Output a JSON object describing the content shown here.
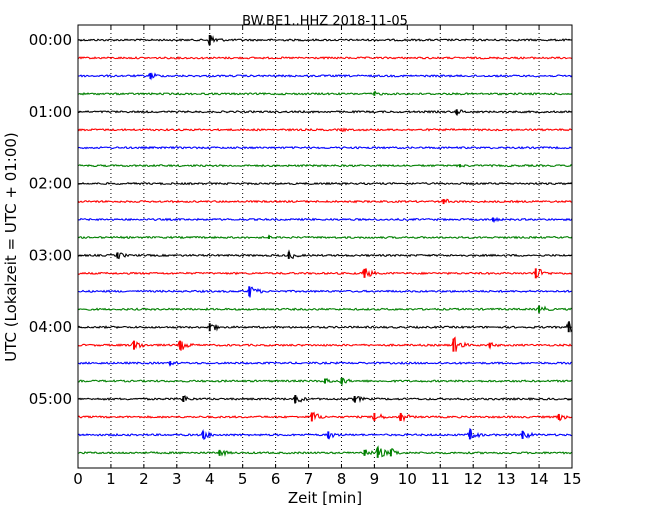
{
  "chart_data": {
    "type": "line",
    "title": "BW.BE1..HHZ 2018-11-05",
    "xlabel": "Zeit  [min]",
    "ylabel": "UTC (Lokalzeit = UTC + 01:00)",
    "xlim": [
      0,
      15
    ],
    "x_ticks": [
      "0",
      "1",
      "2",
      "3",
      "4",
      "5",
      "6",
      "7",
      "8",
      "9",
      "10",
      "11",
      "12",
      "13",
      "14",
      "15"
    ],
    "y_tick_labels": [
      "00:00",
      "01:00",
      "02:00",
      "03:00",
      "04:00",
      "05:00"
    ],
    "trace_interval_minutes": 15,
    "grid": "vertical dotted at each minute",
    "trace_colors": [
      "#000000",
      "#ff0000",
      "#0000ff",
      "#008000"
    ],
    "traces": [
      {
        "start": "00:00",
        "events": [
          {
            "t": 4.0,
            "amp": 1.0
          }
        ]
      },
      {
        "start": "00:15",
        "events": []
      },
      {
        "start": "00:30",
        "events": [
          {
            "t": 2.2,
            "amp": 0.6
          }
        ]
      },
      {
        "start": "00:45",
        "events": [
          {
            "t": 9.0,
            "amp": 0.4
          }
        ]
      },
      {
        "start": "01:00",
        "events": [
          {
            "t": 11.5,
            "amp": 0.5
          }
        ]
      },
      {
        "start": "01:15",
        "events": [
          {
            "t": 8.0,
            "amp": 0.3
          }
        ]
      },
      {
        "start": "01:30",
        "events": []
      },
      {
        "start": "01:45",
        "events": [
          {
            "t": 11.6,
            "amp": 0.3
          }
        ]
      },
      {
        "start": "02:00",
        "events": []
      },
      {
        "start": "02:15",
        "events": [
          {
            "t": 11.1,
            "amp": 0.5
          }
        ]
      },
      {
        "start": "02:30",
        "events": [
          {
            "t": 12.6,
            "amp": 0.4
          }
        ]
      },
      {
        "start": "02:45",
        "events": [
          {
            "t": 5.8,
            "amp": 0.3
          }
        ]
      },
      {
        "start": "03:00",
        "events": [
          {
            "t": 1.2,
            "amp": 0.6
          },
          {
            "t": 6.4,
            "amp": 0.7
          }
        ]
      },
      {
        "start": "03:15",
        "events": [
          {
            "t": 8.7,
            "amp": 0.9
          },
          {
            "t": 13.9,
            "amp": 1.0
          }
        ]
      },
      {
        "start": "03:30",
        "events": [
          {
            "t": 5.2,
            "amp": 1.0
          }
        ]
      },
      {
        "start": "03:45",
        "events": [
          {
            "t": 14.0,
            "amp": 0.7
          }
        ]
      },
      {
        "start": "04:00",
        "events": [
          {
            "t": 4.0,
            "amp": 0.8
          },
          {
            "t": 14.9,
            "amp": 1.0
          }
        ]
      },
      {
        "start": "04:15",
        "events": [
          {
            "t": 1.7,
            "amp": 0.9
          },
          {
            "t": 3.1,
            "amp": 0.9
          },
          {
            "t": 11.4,
            "amp": 1.3
          },
          {
            "t": 12.5,
            "amp": 0.5
          }
        ]
      },
      {
        "start": "04:30",
        "events": [
          {
            "t": 2.8,
            "amp": 0.4
          }
        ]
      },
      {
        "start": "04:45",
        "events": [
          {
            "t": 7.5,
            "amp": 0.5
          },
          {
            "t": 8.0,
            "amp": 0.6
          }
        ]
      },
      {
        "start": "05:00",
        "events": [
          {
            "t": 3.2,
            "amp": 0.6
          },
          {
            "t": 6.6,
            "amp": 0.8
          },
          {
            "t": 8.4,
            "amp": 0.6
          }
        ]
      },
      {
        "start": "05:15",
        "events": [
          {
            "t": 7.1,
            "amp": 0.9
          },
          {
            "t": 9.0,
            "amp": 0.8
          },
          {
            "t": 9.8,
            "amp": 0.8
          },
          {
            "t": 14.6,
            "amp": 0.6
          }
        ]
      },
      {
        "start": "05:30",
        "events": [
          {
            "t": 3.8,
            "amp": 0.7
          },
          {
            "t": 7.6,
            "amp": 0.7
          },
          {
            "t": 11.9,
            "amp": 0.9
          },
          {
            "t": 13.5,
            "amp": 0.8
          }
        ]
      },
      {
        "start": "05:45",
        "events": [
          {
            "t": 4.3,
            "amp": 0.6
          },
          {
            "t": 8.7,
            "amp": 0.6
          },
          {
            "t": 9.1,
            "amp": 1.0
          },
          {
            "t": 9.5,
            "amp": 0.7
          }
        ]
      }
    ]
  }
}
